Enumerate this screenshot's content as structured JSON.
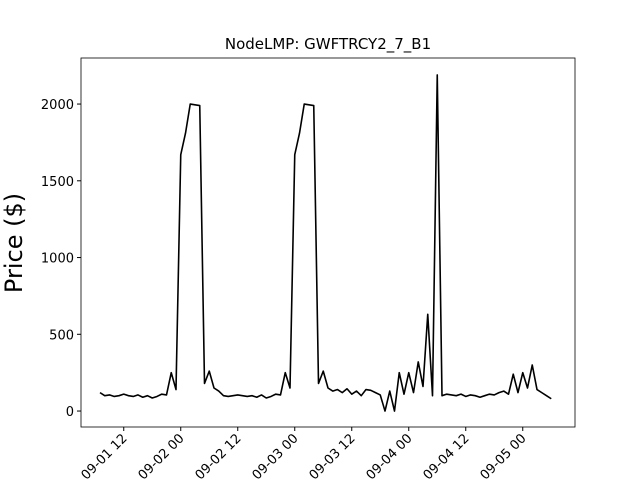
{
  "chart_data": {
    "type": "line",
    "title": "NodeLMP: GWFTRCY2_7_B1",
    "y_label": "Price ($)",
    "x": [
      "09-01 07",
      "09-01 08",
      "09-01 09",
      "09-01 10",
      "09-01 11",
      "09-01 12",
      "09-01 13",
      "09-01 14",
      "09-01 15",
      "09-01 16",
      "09-01 17",
      "09-01 18",
      "09-01 19",
      "09-01 20",
      "09-01 21",
      "09-01 22",
      "09-01 23",
      "09-02 00",
      "09-02 01",
      "09-02 02",
      "09-02 03",
      "09-02 04",
      "09-02 05",
      "09-02 06",
      "09-02 07",
      "09-02 08",
      "09-02 09",
      "09-02 10",
      "09-02 11",
      "09-02 12",
      "09-02 13",
      "09-02 14",
      "09-02 15",
      "09-02 16",
      "09-02 17",
      "09-02 18",
      "09-02 19",
      "09-02 20",
      "09-02 21",
      "09-02 22",
      "09-02 23",
      "09-03 00",
      "09-03 01",
      "09-03 02",
      "09-03 03",
      "09-03 04",
      "09-03 05",
      "09-03 06",
      "09-03 07",
      "09-03 08",
      "09-03 09",
      "09-03 10",
      "09-03 11",
      "09-03 12",
      "09-03 13",
      "09-03 14",
      "09-03 15",
      "09-03 16",
      "09-03 17",
      "09-03 18",
      "09-03 19",
      "09-03 20",
      "09-03 21",
      "09-03 22",
      "09-03 23",
      "09-04 00",
      "09-04 01",
      "09-04 02",
      "09-04 03",
      "09-04 04",
      "09-04 05",
      "09-04 06",
      "09-04 07",
      "09-04 08",
      "09-04 09",
      "09-04 10",
      "09-04 11",
      "09-04 12",
      "09-04 13",
      "09-04 14",
      "09-04 15",
      "09-04 16",
      "09-04 17",
      "09-04 18",
      "09-04 19",
      "09-04 20",
      "09-04 21",
      "09-04 22",
      "09-04 23",
      "09-05 00",
      "09-05 01",
      "09-05 02",
      "09-05 03",
      "09-05 04",
      "09-05 05",
      "09-05 06"
    ],
    "series": [
      {
        "name": "NodeLMP",
        "color": "#000000",
        "values": [
          120,
          100,
          105,
          95,
          100,
          110,
          100,
          95,
          105,
          90,
          100,
          85,
          95,
          110,
          105,
          250,
          140,
          1670,
          1810,
          2000,
          1995,
          1990,
          180,
          260,
          150,
          130,
          100,
          95,
          100,
          105,
          100,
          95,
          100,
          90,
          105,
          85,
          95,
          110,
          105,
          250,
          150,
          1670,
          1810,
          2000,
          1995,
          1990,
          180,
          260,
          150,
          130,
          140,
          120,
          145,
          110,
          130,
          100,
          140,
          135,
          120,
          105,
          0,
          130,
          0,
          250,
          110,
          250,
          120,
          320,
          160,
          630,
          100,
          2190,
          100,
          110,
          105,
          100,
          110,
          95,
          105,
          100,
          90,
          100,
          110,
          105,
          120,
          130,
          110,
          240,
          120,
          250,
          150,
          300,
          140,
          120,
          100,
          80
        ]
      }
    ],
    "xlim": [
      "09-01 03",
      "09-05 11"
    ],
    "xticks": [
      "09-01 12",
      "09-02 00",
      "09-02 12",
      "09-03 00",
      "09-03 12",
      "09-04 00",
      "09-04 12",
      "09-05 00"
    ],
    "ylim": [
      -104,
      2300
    ],
    "yticks": [
      0,
      500,
      1000,
      1500,
      2000
    ]
  }
}
